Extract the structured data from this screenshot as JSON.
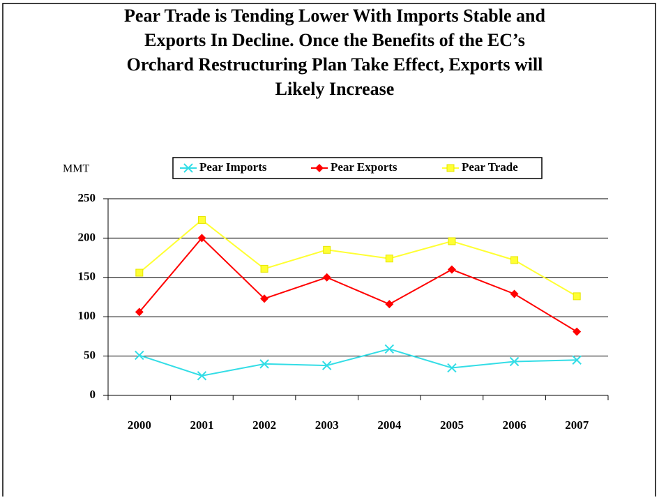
{
  "chart_data": {
    "type": "line",
    "title": [
      "Pear Trade is Tending Lower With Imports Stable and",
      "Exports In Decline.  Once the Benefits of the EC’s",
      "Orchard Restructuring Plan Take Effect, Exports will",
      "Likely Increase"
    ],
    "y_label": "MMT",
    "categories": [
      "2000",
      "2001",
      "2002",
      "2003",
      "2004",
      "2005",
      "2006",
      "2007"
    ],
    "series": [
      {
        "name": "Pear Imports",
        "color": "#33dde6",
        "marker": "x",
        "values": [
          51,
          25,
          40,
          38,
          59,
          35,
          43,
          45
        ]
      },
      {
        "name": "Pear Exports",
        "color": "#ff0000",
        "marker": "diamond",
        "values": [
          106,
          200,
          123,
          150,
          116,
          160,
          129,
          81
        ]
      },
      {
        "name": "Pear Trade",
        "color": "#ffff33",
        "marker": "square",
        "values": [
          156,
          223,
          161,
          185,
          174,
          196,
          172,
          126
        ]
      }
    ],
    "ylim": [
      0,
      250
    ],
    "yticks": [
      0,
      50,
      100,
      150,
      200,
      250
    ],
    "grid": true,
    "legend": "top"
  }
}
